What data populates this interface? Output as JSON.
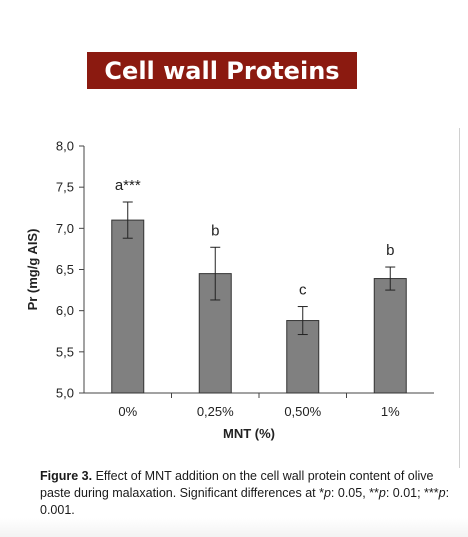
{
  "banner": {
    "title": "Cell wall Proteins"
  },
  "chart_data": {
    "type": "bar",
    "categories": [
      "0%",
      "0,25%",
      "0,50%",
      "1%"
    ],
    "values": [
      7.1,
      6.45,
      5.88,
      6.39
    ],
    "errors": [
      0.22,
      0.32,
      0.17,
      0.14
    ],
    "annotations": [
      "a***",
      "b",
      "c",
      "b"
    ],
    "xlabel": "MNT (%)",
    "ylabel": "Pr (mg/g AIS)",
    "ylim": [
      5.0,
      8.0
    ],
    "yticks": [
      "5,0",
      "5,5",
      "6,0",
      "6,5",
      "7,0",
      "7,5",
      "8,0"
    ],
    "bar_color": "#808080",
    "grid": false
  },
  "caption": {
    "lead": "Figure 3.",
    "text1": " Effect of MNT addition on the cell wall protein content of olive paste during malaxation. Significant differences at *",
    "p1": "p",
    "text2": ": 0.05, **",
    "p2": "p",
    "text3": ": 0.01; ***",
    "p3": "p",
    "text4": ": 0.001."
  }
}
